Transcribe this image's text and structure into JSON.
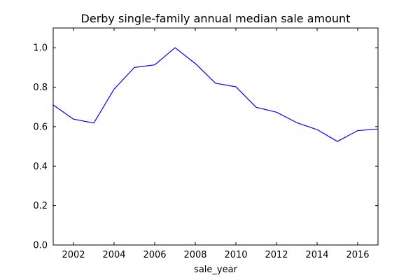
{
  "chart_data": {
    "type": "line",
    "title": "Derby single-family annual median sale amount",
    "xlabel": "sale_year",
    "ylabel": "",
    "xlim": [
      2001,
      2017
    ],
    "ylim": [
      0.0,
      1.1
    ],
    "xticks": [
      2002,
      2004,
      2006,
      2008,
      2010,
      2012,
      2014,
      2016
    ],
    "yticks": [
      0.0,
      0.2,
      0.4,
      0.6,
      0.8,
      1.0
    ],
    "ytick_labels": [
      "0.0",
      "0.2",
      "0.4",
      "0.6",
      "0.8",
      "1.0"
    ],
    "grid": false,
    "series": [
      {
        "color": "#0000ff",
        "x": [
          2001,
          2002,
          2003,
          2004,
          2005,
          2006,
          2007,
          2008,
          2009,
          2010,
          2011,
          2012,
          2013,
          2014,
          2015,
          2016,
          2017
        ],
        "values": [
          0.71,
          0.638,
          0.618,
          0.79,
          0.9,
          0.913,
          1.0,
          0.92,
          0.82,
          0.802,
          0.698,
          0.673,
          0.62,
          0.585,
          0.525,
          0.58,
          0.588
        ]
      }
    ]
  }
}
